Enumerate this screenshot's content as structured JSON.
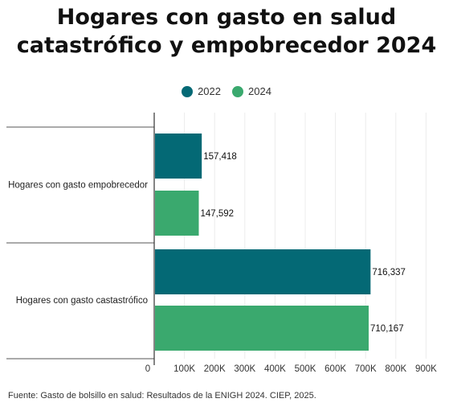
{
  "title_line1": "Hogares con gasto en salud",
  "title_line2": "catastrófico y empobrecedor 2024",
  "colors": {
    "s2022": "#046975",
    "s2024": "#3aa96e"
  },
  "source": "Fuente: Gasto de bolsillo en salud: Resultados de la ENIGH 2024. CIEP, 2025.",
  "chart_data": {
    "type": "bar",
    "orientation": "horizontal",
    "categories": [
      "Hogares con gasto empobrecedor",
      "Hogares con gasto castastrófico"
    ],
    "series": [
      {
        "name": "2022",
        "values": [
          157418,
          716337
        ],
        "labels": [
          "157,418",
          "716,337"
        ]
      },
      {
        "name": "2024",
        "values": [
          147592,
          710167
        ],
        "labels": [
          "147,592",
          "710,167"
        ]
      }
    ],
    "xticks": [
      "0",
      "100K",
      "200K",
      "300K",
      "400K",
      "500K",
      "600K",
      "700K",
      "800K",
      "900K"
    ],
    "xlim": [
      0,
      900000
    ],
    "grid": true,
    "legend_position": "top"
  }
}
